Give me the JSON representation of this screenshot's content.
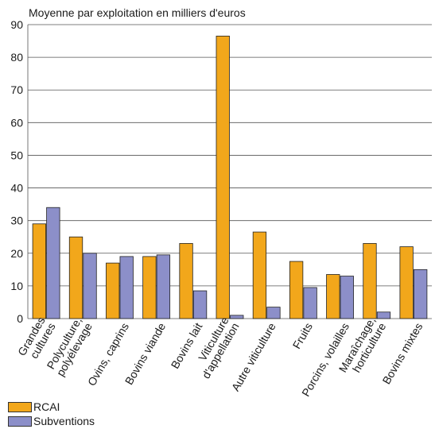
{
  "chart_data": {
    "type": "bar",
    "title": "",
    "ylabel": "Moyenne par exploitation en milliers d'euros",
    "xlabel": "",
    "ylim": [
      0,
      90
    ],
    "yticks": [
      0,
      10,
      20,
      30,
      40,
      50,
      60,
      70,
      80,
      90
    ],
    "grid": true,
    "legend_position": "bottom-left",
    "categories": [
      [
        "Grandes",
        "cultures"
      ],
      [
        "Polyculture,",
        "polyélevage"
      ],
      [
        "Ovins, caprins"
      ],
      [
        "Bovins viande"
      ],
      [
        "Bovins lait"
      ],
      [
        "Viticulture",
        "d'appellation"
      ],
      [
        "Autre viticulture"
      ],
      [
        "Fruits"
      ],
      [
        "Porcins, volailles"
      ],
      [
        "Maraîchage,",
        "horticulture"
      ],
      [
        "Bovins mixtes"
      ]
    ],
    "series": [
      {
        "name": "RCAI",
        "color": "#f2a71b",
        "values": [
          29,
          25,
          17,
          19,
          23,
          86.5,
          26.5,
          17.5,
          13.5,
          23,
          22
        ]
      },
      {
        "name": "Subventions",
        "color": "#8c8fc9",
        "values": [
          34,
          20,
          19,
          19.5,
          8.5,
          1,
          3.5,
          9.5,
          13,
          2,
          15
        ]
      }
    ]
  }
}
